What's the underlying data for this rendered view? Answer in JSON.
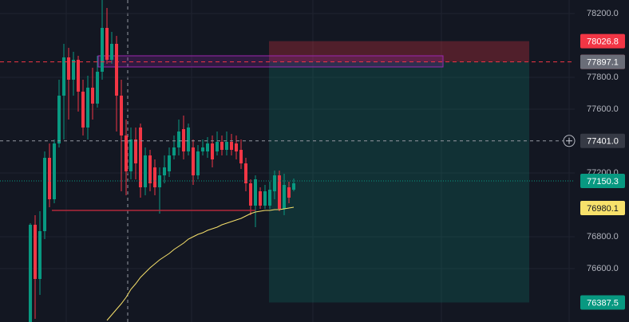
{
  "chart_data": {
    "type": "candlestick",
    "ylim": [
      76265,
      78285
    ],
    "yticks": [
      {
        "value": 78200,
        "label": "78200.0"
      },
      {
        "value": 77800,
        "label": "77800.0"
      },
      {
        "value": 77600,
        "label": "77600.0"
      },
      {
        "value": 77200,
        "label": "77200.0"
      },
      {
        "value": 76800,
        "label": "76800.0"
      },
      {
        "value": 76600,
        "label": "76600.0"
      }
    ],
    "up_color": "#089981",
    "down_color": "#f23645",
    "ma_color": "#f7e16b",
    "open": [
      76265,
      76875,
      76535,
      76835,
      77295,
      77035,
      77385,
      77685,
      77925,
      77785,
      77910,
      77710,
      77485,
      77735,
      77635,
      77835,
      78110,
      77910,
      78010,
      77685,
      77435,
      77210,
      77410,
      77485,
      77110,
      77310,
      77235,
      77110,
      77185,
      77210,
      77310,
      77360,
      77475,
      77335,
      77360,
      77185,
      77335,
      77335,
      77385,
      77335,
      77395,
      77345,
      77395,
      77385,
      77345,
      77260,
      77135,
      76995,
      77085,
      76995,
      76995,
      77085,
      77185,
      76975,
      77110,
      77095
    ],
    "high": [
      76885,
      76935,
      76960,
      77335,
      77385,
      77410,
      77785,
      78010,
      77985,
      77960,
      77935,
      77785,
      77810,
      77860,
      77935,
      78285,
      78235,
      78085,
      78060,
      77785,
      77535,
      77485,
      77485,
      77510,
      77360,
      77345,
      77285,
      77235,
      77310,
      77360,
      77435,
      77535,
      77560,
      77510,
      77410,
      77375,
      77410,
      77425,
      77435,
      77460,
      77435,
      77460,
      77445,
      77435,
      77410,
      77295,
      77160,
      77185,
      77110,
      77125,
      77145,
      77215,
      77215,
      77195,
      77145,
      77165
    ],
    "low": [
      76265,
      76285,
      76435,
      76785,
      76985,
      77010,
      77360,
      77410,
      77535,
      77685,
      77585,
      77435,
      77410,
      77535,
      77610,
      77785,
      77885,
      77885,
      77460,
      77085,
      77060,
      77160,
      77160,
      77045,
      77060,
      77085,
      77060,
      76945,
      77135,
      77175,
      77285,
      77310,
      77285,
      77310,
      77125,
      77160,
      77310,
      77295,
      77235,
      77310,
      77310,
      77310,
      77310,
      77285,
      77225,
      77085,
      76935,
      76860,
      76975,
      76975,
      76975,
      77035,
      76960,
      76935,
      77010,
      77085
    ],
    "close": [
      76875,
      76535,
      76835,
      77295,
      77035,
      77385,
      77685,
      77925,
      77785,
      77910,
      77710,
      77485,
      77735,
      77635,
      77835,
      78110,
      77910,
      78010,
      77685,
      77435,
      77210,
      77410,
      77260,
      77110,
      77310,
      77135,
      77110,
      77185,
      77235,
      77310,
      77360,
      77460,
      77335,
      77485,
      77185,
      77335,
      77360,
      77385,
      77285,
      77395,
      77345,
      77395,
      77345,
      77335,
      77260,
      77135,
      76995,
      77160,
      76995,
      77085,
      77095,
      77185,
      76975,
      77125,
      77045,
      77135
    ],
    "ma": [
      null,
      null,
      null,
      null,
      null,
      null,
      null,
      null,
      null,
      null,
      null,
      null,
      null,
      null,
      null,
      null,
      76275,
      76310,
      76345,
      76380,
      76420,
      76470,
      76505,
      76545,
      76575,
      76605,
      76630,
      76655,
      76675,
      76695,
      76720,
      76740,
      76760,
      76785,
      76800,
      76815,
      76825,
      76840,
      76850,
      76860,
      76875,
      76885,
      76895,
      76905,
      76915,
      76930,
      76945,
      76955,
      76960,
      76965,
      76965,
      76970,
      76970,
      76975,
      76980,
      76985
    ],
    "zone": [
      77935,
      77865
    ],
    "support": 76965,
    "price_labels": [
      {
        "value": 78026.8,
        "label": "78026.8",
        "color": "#f23645",
        "text_color": "#ffffff"
      },
      {
        "value": 77897.1,
        "label": "77897.1",
        "color": "#f23645",
        "text_color": "#ffffff"
      },
      {
        "value": 77897.1,
        "label": "77897.1",
        "color": "#6a6d78",
        "text_color": "#ffffff"
      },
      {
        "value": 77401.0,
        "label": "77401.0",
        "color": "#363a45",
        "text_color": "#ffffff"
      },
      {
        "value": 77150.3,
        "label": "77150.3",
        "color": "#089981",
        "text_color": "#ffffff"
      },
      {
        "value": 76980.1,
        "label": "76980.1",
        "color": "#f7e16b",
        "text_color": "#131722"
      },
      {
        "value": 76387.5,
        "label": "76387.5",
        "color": "#089981",
        "text_color": "#ffffff"
      }
    ]
  }
}
